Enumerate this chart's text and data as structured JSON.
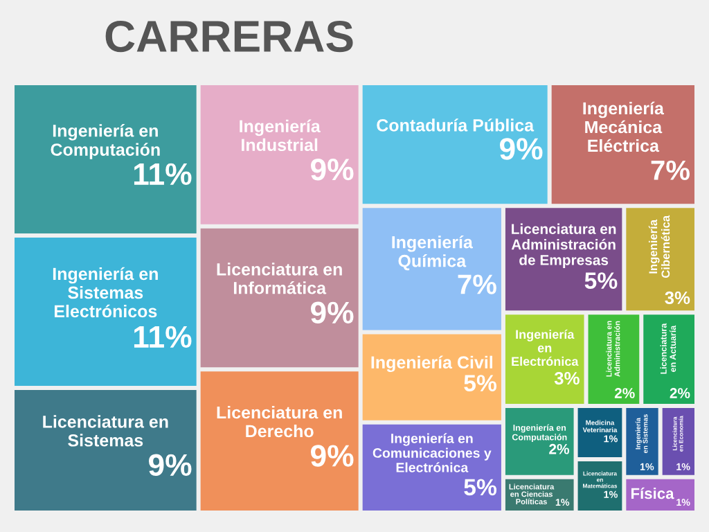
{
  "chart_data": {
    "type": "other",
    "title": "CARRERAS",
    "categories": [
      "Ingeniería en Computación",
      "Ingeniería en Sistemas Electrónicos",
      "Licenciatura en Sistemas",
      "Ingeniería Industrial",
      "Licenciatura en Informática",
      "Licenciatura en Derecho",
      "Contaduría Pública",
      "Ingeniería Mecánica Eléctrica",
      "Ingeniería Química",
      "Ingeniería Civil",
      "Ingeniería en Comunicaciones y Electrónica",
      "Licenciatura en Administración de Empresas",
      "Ingeniería Cibernética",
      "Ingeniería en Electrónica",
      "Licenciatura en Administración",
      "Licenciatura en Actuaría",
      "Ingeniería en Computación",
      "Licenciatura en Ciencias Políticas",
      "Medicina Veterinaria",
      "Licenciatura en Matemáticas",
      "Ingeniería en Sistemas",
      "Licenciatura en Economía",
      "Física"
    ],
    "values": [
      11,
      11,
      9,
      9,
      9,
      9,
      9,
      7,
      7,
      5,
      5,
      5,
      3,
      3,
      2,
      2,
      2,
      1,
      1,
      1,
      1,
      1,
      1
    ],
    "value_labels": [
      "11%",
      "11%",
      "9%",
      "9%",
      "9%",
      "9%",
      "9%",
      "7%",
      "7%",
      "5%",
      "5%",
      "5%",
      "3%",
      "3%",
      "2%",
      "2%",
      "2%",
      "1%",
      "1%",
      "1%",
      "1%",
      "1%",
      "1%"
    ],
    "colors": [
      "#3d9c9e",
      "#3db5d8",
      "#3f7a8a",
      "#e6adc8",
      "#c08e9c",
      "#f0905a",
      "#5bc4e6",
      "#c4706a",
      "#8fbff5",
      "#fdb86a",
      "#7a6fd6",
      "#7a4d8a",
      "#c4ad3a",
      "#a8d636",
      "#3fbf3a",
      "#1faa5a",
      "#2a9a7a",
      "#3a7a70",
      "#0f5f7f",
      "#1f6f6f",
      "#1f5f9a",
      "#6a4fb0",
      "#a566c8"
    ]
  }
}
